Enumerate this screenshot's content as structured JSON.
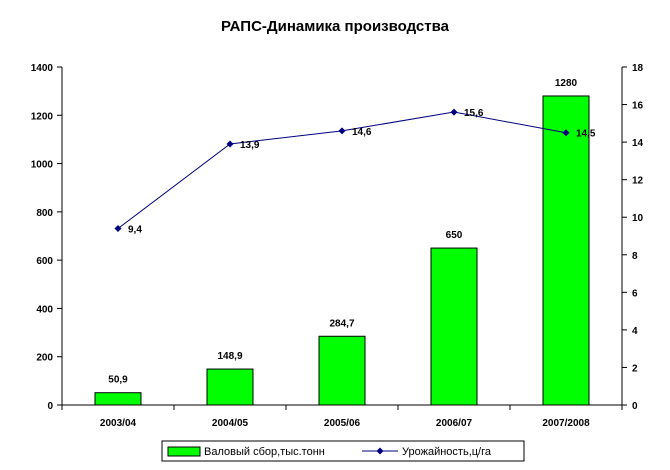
{
  "chart_data": {
    "type": "bar+line",
    "title": "РАПС-Динамика производства",
    "categories": [
      "2003/04",
      "2004/05",
      "2005/06",
      "2006/07",
      "2007/2008"
    ],
    "series": [
      {
        "name": "Валовый сбор,тыс.тонн",
        "type": "bar",
        "axis": "left",
        "color": "#00ff00",
        "values": [
          50.9,
          148.9,
          284.7,
          650,
          1280
        ],
        "labels": [
          "50,9",
          "148,9",
          "284,7",
          "650",
          "1280"
        ]
      },
      {
        "name": "Урожайность,ц/га",
        "type": "line",
        "axis": "right",
        "color": "#000080",
        "values": [
          9.4,
          13.9,
          14.6,
          15.6,
          14.5
        ],
        "labels": [
          "9,4",
          "13,9",
          "14,6",
          "15,6",
          "14,5"
        ]
      }
    ],
    "y_left": {
      "min": 0,
      "max": 1400,
      "ticks": [
        "0",
        "200",
        "400",
        "600",
        "800",
        "1000",
        "1200",
        "1400"
      ]
    },
    "y_right": {
      "min": 0,
      "max": 18,
      "ticks": [
        "0",
        "2",
        "4",
        "6",
        "8",
        "10",
        "12",
        "14",
        "16",
        "18"
      ]
    },
    "grid": false,
    "legend_position": "bottom"
  }
}
